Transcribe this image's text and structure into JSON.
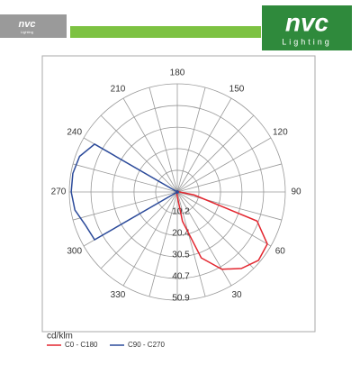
{
  "header": {
    "small_logo": "nvc",
    "small_logo_sub": "Lighting",
    "logo": "nvc",
    "logo_sub": "Lighting"
  },
  "chart_data": {
    "type": "polar",
    "axis_label": "cd/klm",
    "x": [
      0,
      10,
      20,
      30,
      40,
      50,
      60,
      70,
      80,
      90,
      100,
      110,
      120,
      130,
      140,
      150,
      160,
      170,
      180,
      190,
      200,
      210,
      220,
      230,
      240,
      250,
      260,
      270,
      280,
      290,
      300,
      310,
      320,
      330,
      340,
      350
    ],
    "xticks": [
      30,
      60,
      90,
      120,
      150,
      180,
      210,
      240,
      270,
      300,
      330
    ],
    "ylim": [
      0,
      50.9
    ],
    "yticks": [
      10.2,
      20.4,
      30.5,
      40.7,
      50.9
    ],
    "series": [
      {
        "name": "C0 - C180",
        "color": "#e3262f",
        "values": [
          2,
          14,
          33,
          42,
          47,
          50,
          49,
          40,
          8,
          1,
          0.5,
          0.5,
          0.5,
          0.5,
          0.5,
          0.5,
          0.5,
          0.5,
          0.5,
          0.5,
          0.5,
          0.5,
          0.5,
          0.5,
          0.5,
          0.5,
          0.5,
          0.5,
          0.5,
          0.5,
          0.5,
          0.5,
          0.5,
          0.5,
          0.5,
          1
        ]
      },
      {
        "name": "C90 - C270",
        "color": "#2b4a9a",
        "values": [
          0.5,
          0.5,
          0.5,
          0.5,
          0.5,
          0.5,
          0.5,
          0.5,
          0.5,
          0.5,
          0.5,
          0.5,
          0.5,
          0.5,
          0.5,
          0.5,
          0.5,
          0.5,
          0.5,
          0.5,
          0.5,
          0.5,
          0.5,
          0,
          45,
          49,
          50,
          50,
          49,
          46,
          45,
          0,
          0.5,
          0.5,
          0.5,
          0.5
        ]
      }
    ]
  }
}
